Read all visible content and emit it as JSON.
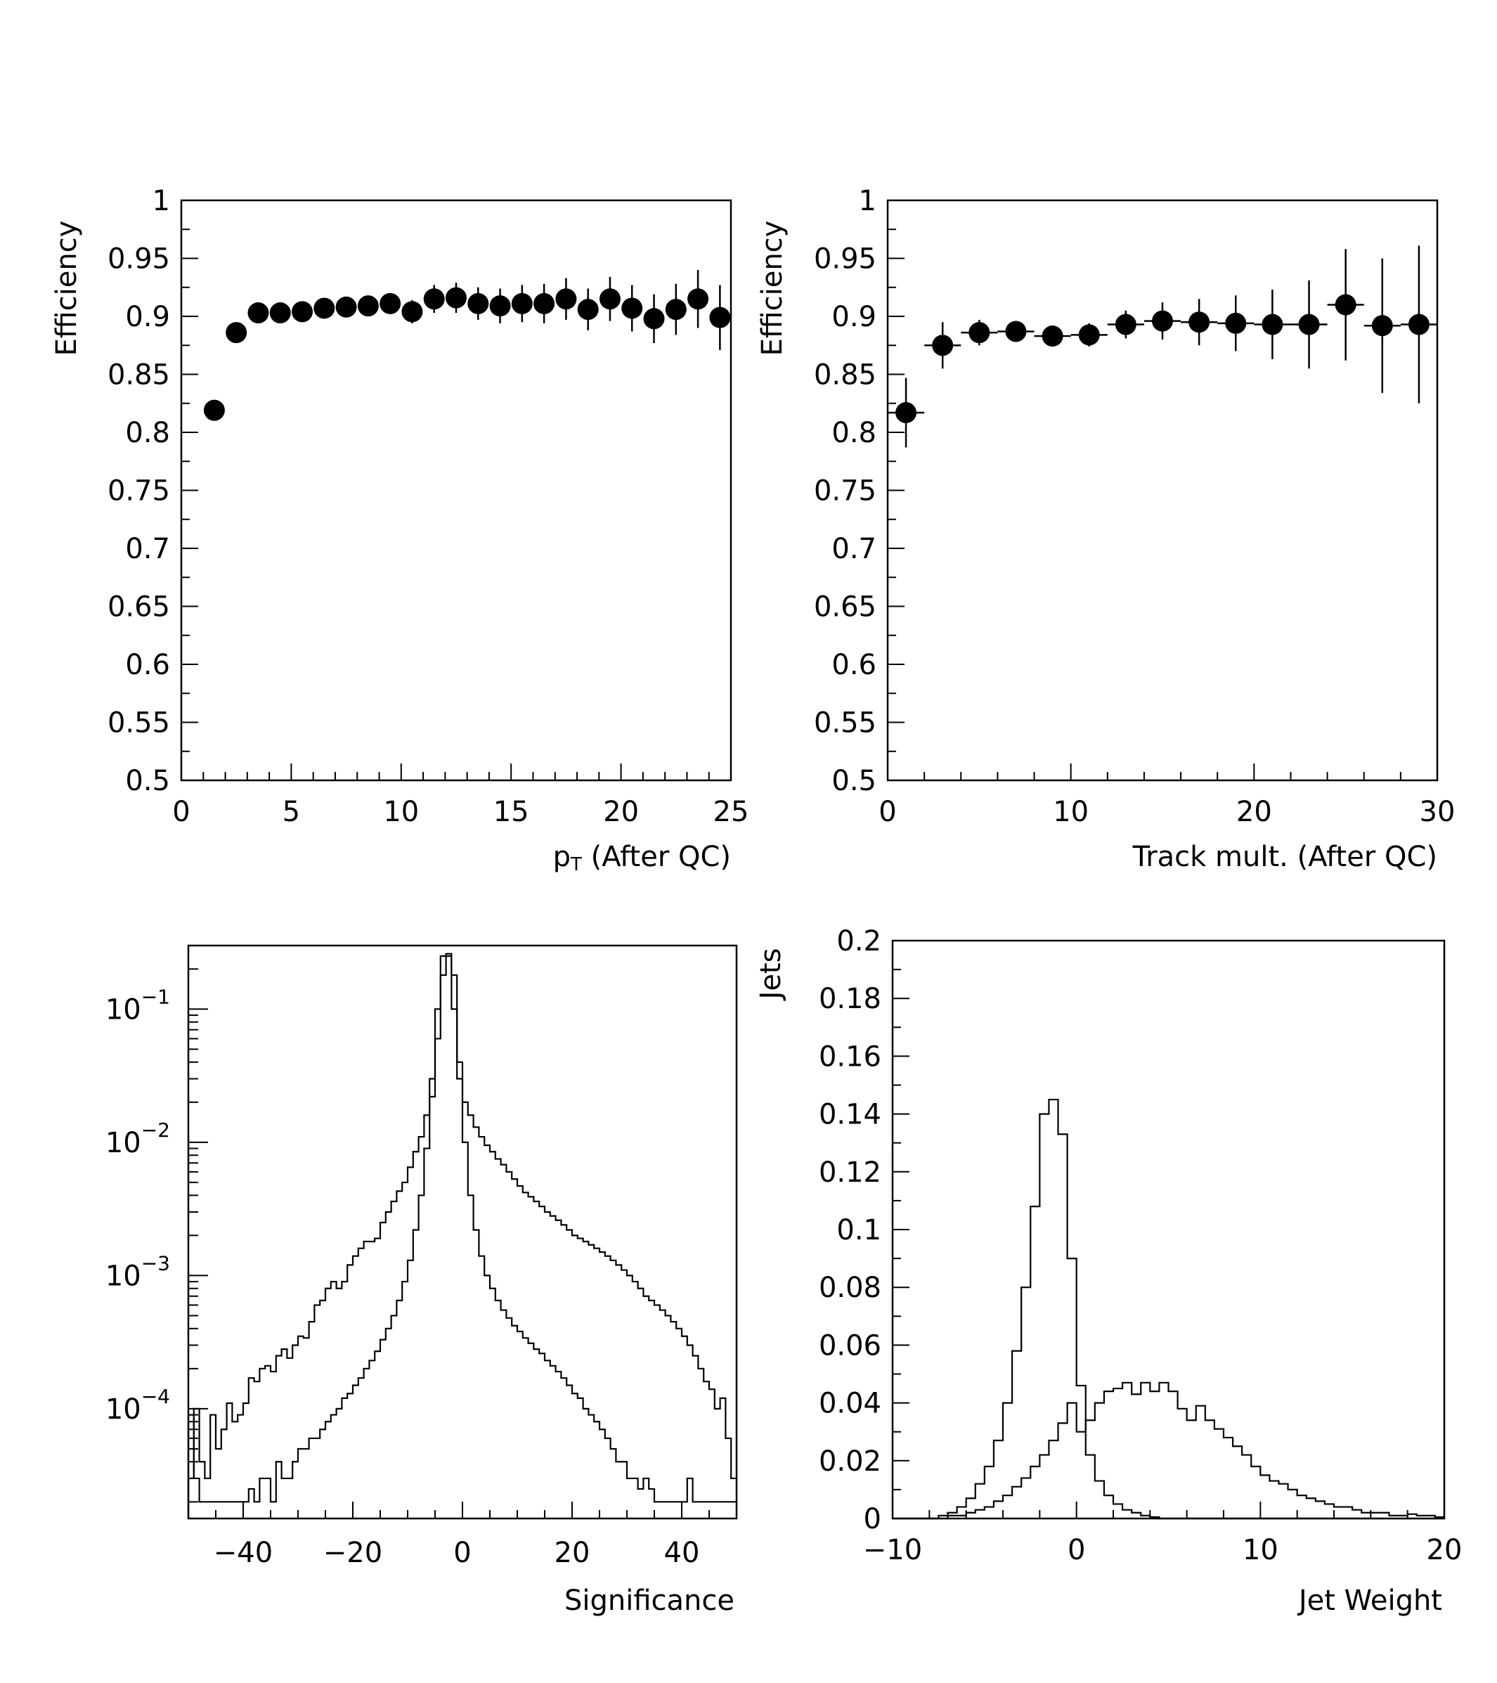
{
  "chart_data": [
    {
      "type": "scatter",
      "xlabel_main": "p",
      "xlabel_sub": "T",
      "xlabel_rest": " (After QC)",
      "ylabel": "Efficiency",
      "xlim": [
        0,
        25
      ],
      "ylim": [
        0.5,
        1
      ],
      "xticks": [
        0,
        5,
        10,
        15,
        20,
        25
      ],
      "yticks": [
        0.5,
        0.55,
        0.6,
        0.65,
        0.7,
        0.75,
        0.8,
        0.85,
        0.9,
        0.95,
        1
      ],
      "ytick_labels": [
        "0.5",
        "0.55",
        "0.6",
        "0.65",
        "0.7",
        "0.75",
        "0.8",
        "0.85",
        "0.9",
        "0.95",
        "1"
      ],
      "x": [
        1.5,
        2.5,
        3.5,
        4.5,
        5.5,
        6.5,
        7.5,
        8.5,
        9.5,
        10.5,
        11.5,
        12.5,
        13.5,
        14.5,
        15.5,
        16.5,
        17.5,
        18.5,
        19.5,
        20.5,
        21.5,
        22.5,
        23.5,
        24.5
      ],
      "y": [
        0.819,
        0.886,
        0.903,
        0.903,
        0.904,
        0.907,
        0.908,
        0.909,
        0.911,
        0.904,
        0.915,
        0.916,
        0.911,
        0.909,
        0.911,
        0.911,
        0.915,
        0.906,
        0.915,
        0.907,
        0.898,
        0.906,
        0.915,
        0.899
      ],
      "yerr": [
        0.003,
        0.004,
        0.004,
        0.004,
        0.004,
        0.004,
        0.005,
        0.006,
        0.008,
        0.01,
        0.012,
        0.013,
        0.014,
        0.015,
        0.016,
        0.017,
        0.018,
        0.018,
        0.019,
        0.02,
        0.021,
        0.022,
        0.025,
        0.028
      ]
    },
    {
      "type": "scatter",
      "xlabel": "Track mult. (After QC)",
      "ylabel": "Efficiency",
      "xlim": [
        0,
        30
      ],
      "ylim": [
        0.5,
        1
      ],
      "xticks": [
        0,
        10,
        20,
        30
      ],
      "yticks": [
        0.5,
        0.55,
        0.6,
        0.65,
        0.7,
        0.75,
        0.8,
        0.85,
        0.9,
        0.95,
        1
      ],
      "ytick_labels": [
        "0.5",
        "0.55",
        "0.6",
        "0.65",
        "0.7",
        "0.75",
        "0.8",
        "0.85",
        "0.9",
        "0.95",
        "1"
      ],
      "x": [
        1,
        3,
        5,
        7,
        9,
        11,
        13,
        15,
        17,
        19,
        21,
        23,
        25,
        27,
        29
      ],
      "y": [
        0.817,
        0.875,
        0.886,
        0.887,
        0.883,
        0.884,
        0.893,
        0.896,
        0.895,
        0.894,
        0.893,
        0.893,
        0.91,
        0.892,
        0.893
      ],
      "yerr": [
        0.03,
        0.02,
        0.011,
        0.009,
        0.009,
        0.01,
        0.012,
        0.016,
        0.02,
        0.024,
        0.03,
        0.038,
        0.048,
        0.058,
        0.068
      ],
      "xerr": 1
    },
    {
      "type": "histogram",
      "xlabel": "Significance",
      "xlim": [
        -50,
        50
      ],
      "yscale": "log",
      "ylim": [
        1.5e-05,
        0.3
      ],
      "xticks": [
        -40,
        -20,
        0,
        20,
        40
      ],
      "xtick_labels": [
        "−40",
        "−20",
        "0",
        "20",
        "40"
      ],
      "yticks": [
        0.1,
        0.01,
        0.001,
        0.0001
      ],
      "ytick_base": "10",
      "ytick_exponents": [
        "−1",
        "−2",
        "−3",
        "−4"
      ],
      "bin_width": 1,
      "series": [
        {
          "bin_edges_start": -50,
          "values": [
            9e-05,
            3e-05,
            2e-05,
            2e-05,
            2e-05,
            2e-05,
            2e-05,
            2e-05,
            2e-05,
            2e-05,
            2e-05,
            2.5e-05,
            2e-05,
            3e-05,
            3e-05,
            2e-05,
            4e-05,
            3e-05,
            3e-05,
            4e-05,
            5e-05,
            5e-05,
            6e-05,
            6e-05,
            7e-05,
            8e-05,
            9e-05,
            0.0001,
            0.00012,
            0.00013,
            0.00015,
            0.00017,
            0.0002,
            0.00023,
            0.00027,
            0.00033,
            0.0004,
            0.0005,
            0.00065,
            0.0009,
            0.0013,
            0.0022,
            0.004,
            0.009,
            0.022,
            0.06,
            0.18,
            0.26,
            0.18,
            0.04,
            0.01,
            0.004,
            0.0022,
            0.0014,
            0.001,
            0.0008,
            0.00065,
            0.00055,
            0.00048,
            0.00042,
            0.00038,
            0.00034,
            0.00031,
            0.00028,
            0.00026,
            0.00023,
            0.00021,
            0.00019,
            0.00017,
            0.00015,
            0.00013,
            0.00012,
            0.0001,
            9e-05,
            8e-05,
            7e-05,
            6e-05,
            5e-05,
            4e-05,
            4e-05,
            3e-05,
            3e-05,
            2.5e-05,
            3e-05,
            2.5e-05,
            2e-05,
            2e-05,
            2e-05,
            2e-05,
            2e-05,
            2e-05,
            3e-05,
            2e-05,
            2e-05,
            2e-05,
            2e-05,
            2e-05,
            2e-05,
            2e-05,
            2e-05
          ]
        },
        {
          "bin_edges_start": -50,
          "values": [
            3e-05,
            0.0001,
            4e-05,
            3e-05,
            9e-05,
            5e-05,
            7e-05,
            0.00011,
            8e-05,
            9e-05,
            0.00011,
            0.00017,
            0.00016,
            0.0002,
            0.00021,
            0.00019,
            0.00025,
            0.00028,
            0.00024,
            0.0003,
            0.00035,
            0.00034,
            0.00045,
            0.0006,
            0.00065,
            0.0008,
            0.0009,
            0.0008,
            0.0009,
            0.0012,
            0.0014,
            0.0016,
            0.0018,
            0.0018,
            0.0019,
            0.0025,
            0.003,
            0.0036,
            0.0043,
            0.005,
            0.0065,
            0.0085,
            0.011,
            0.016,
            0.03,
            0.1,
            0.25,
            0.25,
            0.1,
            0.03,
            0.02,
            0.016,
            0.013,
            0.011,
            0.0095,
            0.0085,
            0.0075,
            0.0068,
            0.006,
            0.0053,
            0.0047,
            0.0042,
            0.0039,
            0.0036,
            0.0033,
            0.003,
            0.0028,
            0.0026,
            0.0024,
            0.0022,
            0.002,
            0.0019,
            0.0018,
            0.0017,
            0.0016,
            0.0015,
            0.0014,
            0.0013,
            0.0012,
            0.0011,
            0.001,
            0.0009,
            0.0008,
            0.0007,
            0.00065,
            0.0006,
            0.00055,
            0.0005,
            0.00045,
            0.0004,
            0.00035,
            0.0003,
            0.00025,
            0.0002,
            0.00016,
            0.00014,
            0.0001,
            0.00012,
            6e-05,
            3e-05
          ]
        }
      ]
    },
    {
      "type": "histogram",
      "xlabel": "Jet Weight",
      "ylabel": "Jets",
      "xlim": [
        -10,
        20
      ],
      "ylim": [
        0,
        0.2
      ],
      "xticks": [
        -10,
        0,
        10,
        20
      ],
      "xtick_labels": [
        "−10",
        "0",
        "10",
        "20"
      ],
      "yticks": [
        0,
        0.02,
        0.04,
        0.06,
        0.08,
        0.1,
        0.12,
        0.14,
        0.16,
        0.18,
        0.2
      ],
      "ytick_labels": [
        "0",
        "0.02",
        "0.04",
        "0.06",
        "0.08",
        "0.1",
        "0.12",
        "0.14",
        "0.16",
        "0.18",
        "0.2"
      ],
      "bin_width": 0.5,
      "series": [
        {
          "bin_edges_start": -10,
          "values": [
            0,
            0,
            0,
            0,
            0,
            0.001,
            0.002,
            0.004,
            0.007,
            0.012,
            0.018,
            0.027,
            0.04,
            0.058,
            0.08,
            0.108,
            0.14,
            0.145,
            0.133,
            0.09,
            0.046,
            0.022,
            0.013,
            0.008,
            0.005,
            0.003,
            0.002,
            0.001,
            0.0005,
            0,
            0,
            0,
            0,
            0,
            0,
            0,
            0,
            0,
            0,
            0,
            0,
            0,
            0,
            0,
            0,
            0,
            0,
            0,
            0,
            0,
            0,
            0,
            0,
            0,
            0,
            0,
            0,
            0,
            0,
            0
          ]
        },
        {
          "bin_edges_start": -10,
          "values": [
            0,
            0,
            0,
            0,
            0,
            0,
            0.001,
            0.001,
            0.002,
            0.003,
            0.004,
            0.006,
            0.008,
            0.011,
            0.014,
            0.018,
            0.022,
            0.027,
            0.033,
            0.04,
            0.03,
            0.034,
            0.04,
            0.044,
            0.045,
            0.047,
            0.043,
            0.047,
            0.044,
            0.047,
            0.044,
            0.038,
            0.034,
            0.039,
            0.034,
            0.031,
            0.028,
            0.025,
            0.022,
            0.018,
            0.015,
            0.013,
            0.012,
            0.01,
            0.008,
            0.007,
            0.006,
            0.005,
            0.004,
            0.004,
            0.003,
            0.002,
            0.002,
            0.002,
            0.001,
            0.001,
            0.0015,
            0.001,
            0.001,
            0.0005
          ]
        }
      ]
    }
  ]
}
